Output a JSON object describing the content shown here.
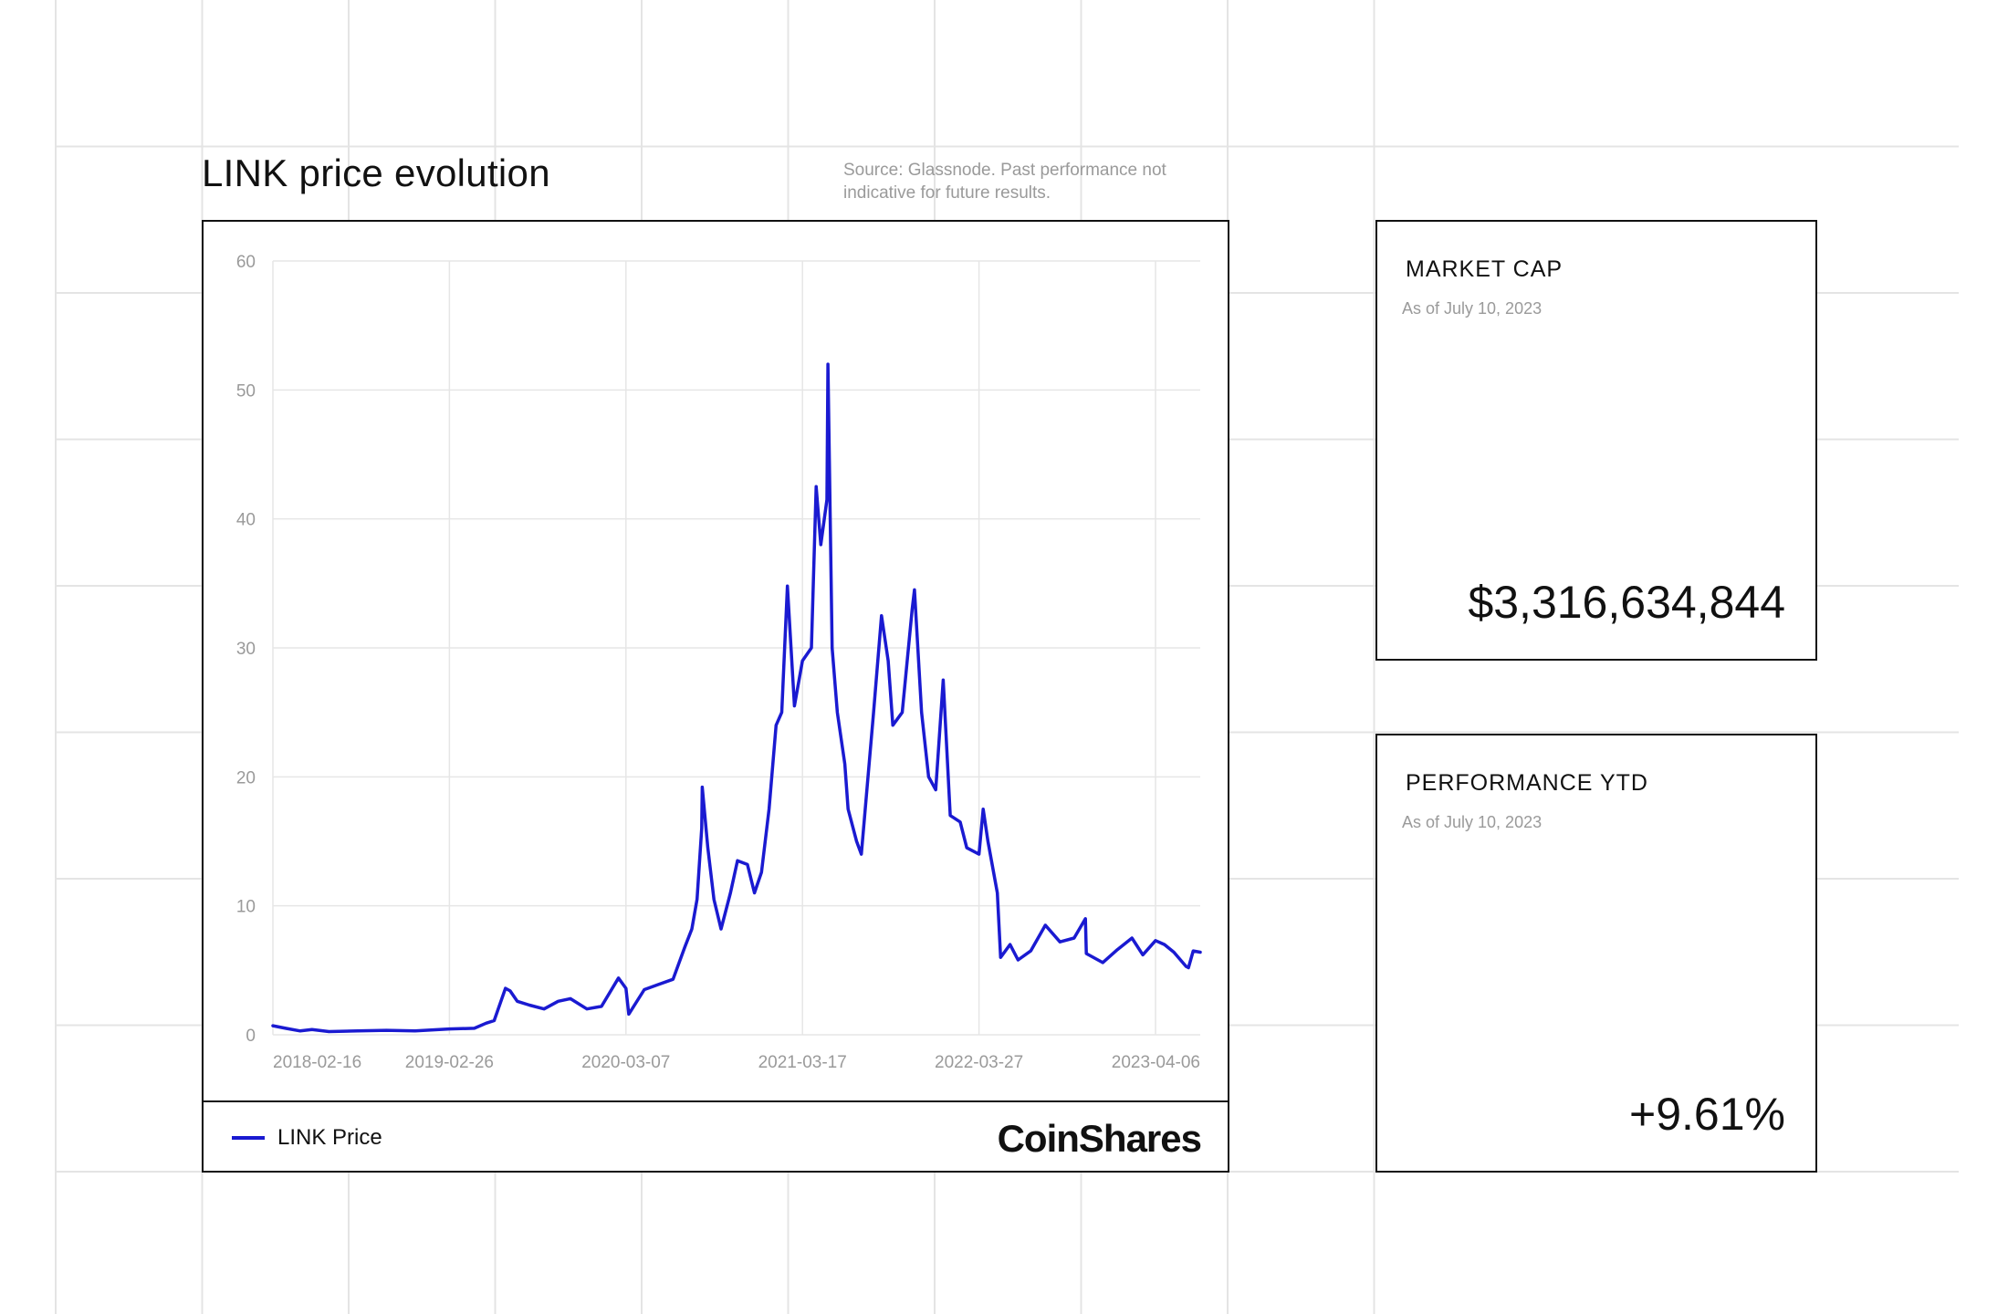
{
  "page": {
    "title": "LINK price evolution",
    "source": "Source: Glassnode. Past performance not indicative for future results.",
    "brand": "CoinShares"
  },
  "colors": {
    "series": "#1a1ad1",
    "gridline": "#e6e6e6",
    "tick_text": "#9a9a9a",
    "border": "#111111"
  },
  "legend": {
    "label": "LINK Price"
  },
  "stats": [
    {
      "title": "MARKET CAP",
      "subtitle": "As of July 10, 2023",
      "value": "$3,316,634,844"
    },
    {
      "title": "PERFORMANCE YTD",
      "subtitle": "As of July 10, 2023",
      "value": "+9.61%"
    }
  ],
  "chart_data": {
    "type": "line",
    "title": "LINK price evolution",
    "xlabel": "",
    "ylabel": "",
    "ylim": [
      0,
      60
    ],
    "yticks": [
      0,
      10,
      20,
      30,
      40,
      50,
      60
    ],
    "xlim": [
      "2018-02-16",
      "2023-07-10"
    ],
    "xticks": [
      "2018-02-16",
      "2019-02-26",
      "2020-03-07",
      "2021-03-17",
      "2022-03-27",
      "2023-04-06"
    ],
    "grid": true,
    "legend_position": "bottom-left",
    "series": [
      {
        "name": "LINK Price",
        "points": [
          [
            "2018-02-16",
            0.7
          ],
          [
            "2018-03-15",
            0.5
          ],
          [
            "2018-04-15",
            0.3
          ],
          [
            "2018-05-10",
            0.4
          ],
          [
            "2018-06-15",
            0.25
          ],
          [
            "2018-08-15",
            0.3
          ],
          [
            "2018-10-15",
            0.35
          ],
          [
            "2018-12-15",
            0.3
          ],
          [
            "2019-02-26",
            0.45
          ],
          [
            "2019-04-20",
            0.5
          ],
          [
            "2019-05-15",
            0.9
          ],
          [
            "2019-06-01",
            1.1
          ],
          [
            "2019-06-25",
            3.6
          ],
          [
            "2019-07-05",
            3.4
          ],
          [
            "2019-07-20",
            2.6
          ],
          [
            "2019-08-15",
            2.3
          ],
          [
            "2019-09-15",
            2.0
          ],
          [
            "2019-10-15",
            2.6
          ],
          [
            "2019-11-10",
            2.8
          ],
          [
            "2019-12-15",
            2.0
          ],
          [
            "2020-01-15",
            2.2
          ],
          [
            "2020-02-20",
            4.4
          ],
          [
            "2020-03-07",
            3.6
          ],
          [
            "2020-03-13",
            1.6
          ],
          [
            "2020-04-15",
            3.5
          ],
          [
            "2020-05-15",
            3.9
          ],
          [
            "2020-06-15",
            4.3
          ],
          [
            "2020-07-10",
            6.8
          ],
          [
            "2020-07-25",
            8.2
          ],
          [
            "2020-08-05",
            10.5
          ],
          [
            "2020-08-15",
            16.0
          ],
          [
            "2020-08-16",
            19.2
          ],
          [
            "2020-08-28",
            14.5
          ],
          [
            "2020-09-10",
            10.5
          ],
          [
            "2020-09-25",
            8.2
          ],
          [
            "2020-10-15",
            11.0
          ],
          [
            "2020-10-30",
            13.5
          ],
          [
            "2020-11-20",
            13.2
          ],
          [
            "2020-12-05",
            11.0
          ],
          [
            "2020-12-20",
            12.6
          ],
          [
            "2021-01-05",
            17.5
          ],
          [
            "2021-01-20",
            24.0
          ],
          [
            "2021-02-01",
            25.0
          ],
          [
            "2021-02-13",
            34.8
          ],
          [
            "2021-02-28",
            25.5
          ],
          [
            "2021-03-17",
            29.0
          ],
          [
            "2021-04-05",
            30.0
          ],
          [
            "2021-04-15",
            42.5
          ],
          [
            "2021-04-25",
            38.0
          ],
          [
            "2021-05-08",
            41.5
          ],
          [
            "2021-05-10",
            52.0
          ],
          [
            "2021-05-19",
            30.0
          ],
          [
            "2021-05-30",
            25.0
          ],
          [
            "2021-06-15",
            21.0
          ],
          [
            "2021-06-22",
            17.5
          ],
          [
            "2021-07-10",
            15.0
          ],
          [
            "2021-07-20",
            14.0
          ],
          [
            "2021-08-15",
            25.0
          ],
          [
            "2021-09-01",
            32.5
          ],
          [
            "2021-09-15",
            29.0
          ],
          [
            "2021-09-25",
            24.0
          ],
          [
            "2021-10-15",
            25.0
          ],
          [
            "2021-11-05",
            33.0
          ],
          [
            "2021-11-10",
            34.5
          ],
          [
            "2021-11-25",
            25.0
          ],
          [
            "2021-12-10",
            20.0
          ],
          [
            "2021-12-25",
            19.0
          ],
          [
            "2022-01-10",
            27.5
          ],
          [
            "2022-01-25",
            17.0
          ],
          [
            "2022-02-15",
            16.5
          ],
          [
            "2022-03-01",
            14.5
          ],
          [
            "2022-03-27",
            14.0
          ],
          [
            "2022-04-05",
            17.5
          ],
          [
            "2022-04-15",
            15.0
          ],
          [
            "2022-05-05",
            11.0
          ],
          [
            "2022-05-12",
            6.0
          ],
          [
            "2022-06-01",
            7.0
          ],
          [
            "2022-06-18",
            5.8
          ],
          [
            "2022-07-15",
            6.5
          ],
          [
            "2022-08-15",
            8.5
          ],
          [
            "2022-09-15",
            7.2
          ],
          [
            "2022-10-15",
            7.5
          ],
          [
            "2022-11-08",
            9.0
          ],
          [
            "2022-11-10",
            6.3
          ],
          [
            "2022-12-15",
            5.6
          ],
          [
            "2023-01-15",
            6.6
          ],
          [
            "2023-02-15",
            7.5
          ],
          [
            "2023-03-10",
            6.2
          ],
          [
            "2023-04-06",
            7.3
          ],
          [
            "2023-04-25",
            7.0
          ],
          [
            "2023-05-15",
            6.4
          ],
          [
            "2023-06-10",
            5.3
          ],
          [
            "2023-06-15",
            5.2
          ],
          [
            "2023-06-25",
            6.5
          ],
          [
            "2023-07-10",
            6.4
          ]
        ]
      }
    ]
  }
}
